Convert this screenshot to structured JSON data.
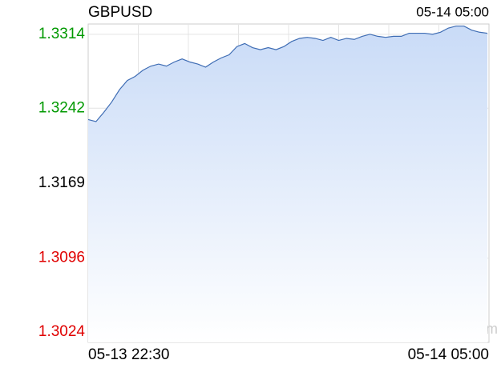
{
  "chart_data": {
    "type": "area",
    "title": "GBPUSD",
    "time": "05-14 05:00",
    "watermark": "sina.com",
    "categories": [
      "05-13 22:30",
      null,
      null,
      null,
      null,
      null,
      null,
      null,
      null,
      null,
      null,
      null,
      null,
      null,
      null,
      null,
      null,
      null,
      null,
      null,
      null,
      null,
      null,
      null,
      null,
      null,
      null,
      null,
      null,
      null,
      null,
      null,
      null,
      null,
      null,
      null,
      null,
      null,
      null,
      null,
      null,
      null,
      null,
      null,
      null,
      null,
      null,
      null,
      null,
      null,
      null,
      "05-14 05:00"
    ],
    "values": [
      1.3231,
      1.3229,
      1.3238,
      1.3248,
      1.326,
      1.3269,
      1.3273,
      1.3279,
      1.3283,
      1.3285,
      1.3283,
      1.3287,
      1.329,
      1.3287,
      1.3285,
      1.3282,
      1.3287,
      1.3291,
      1.3294,
      1.3302,
      1.3305,
      1.3301,
      1.3299,
      1.3301,
      1.3299,
      1.3302,
      1.3307,
      1.331,
      1.3311,
      1.331,
      1.3308,
      1.3311,
      1.3308,
      1.331,
      1.3309,
      1.3312,
      1.3314,
      1.3312,
      1.3311,
      1.3312,
      1.3312,
      1.3315,
      1.3315,
      1.3315,
      1.3314,
      1.3316,
      1.332,
      1.3322,
      1.3322,
      1.3318,
      1.3316,
      1.3315
    ],
    "color": "#3f6db4",
    "fill": "#c9dbf7",
    "ylim": [
      1.3014,
      1.3324
    ],
    "yticks": [
      1.3314,
      1.3242,
      1.3169,
      1.3096,
      1.3024
    ],
    "ytick_colors": [
      "#009900",
      "#009900",
      "#000000",
      "#e00000",
      "#e00000"
    ],
    "grid": true
  }
}
